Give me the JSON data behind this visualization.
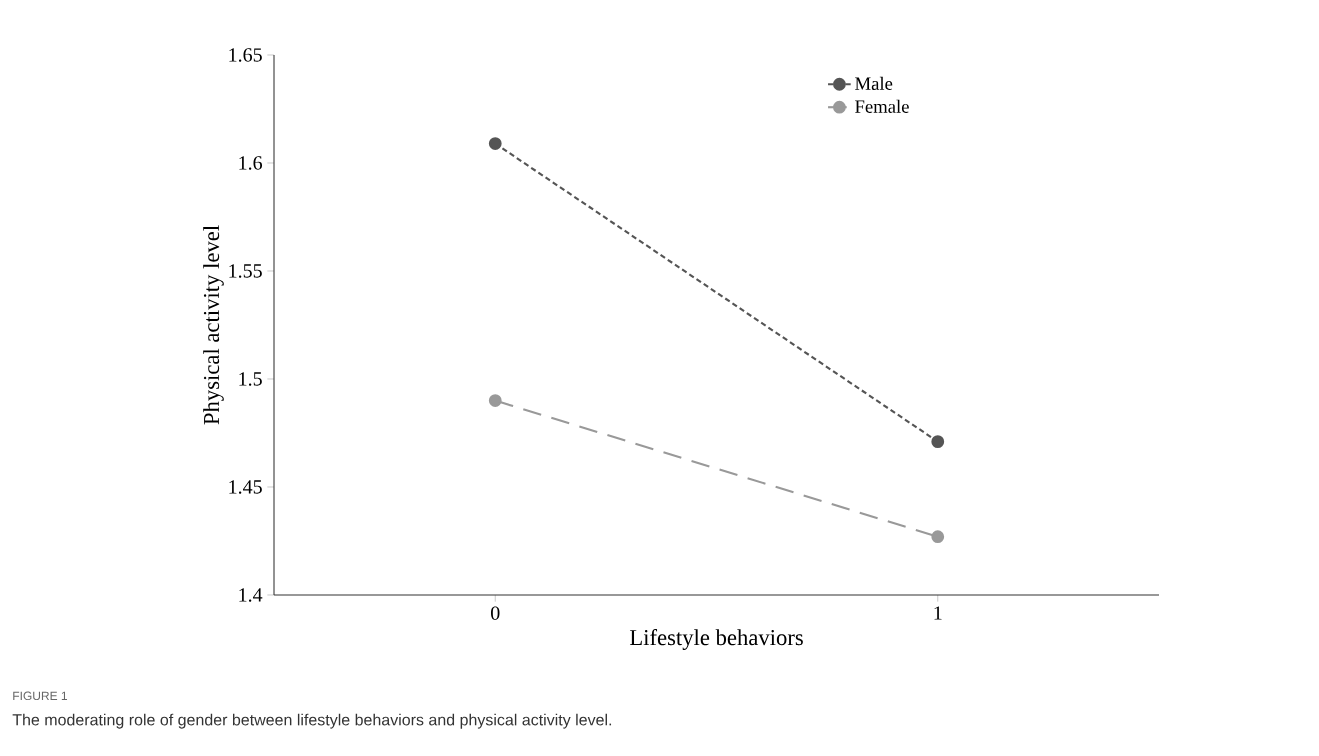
{
  "chart_data": {
    "type": "line",
    "xlabel": "Lifestyle behaviors",
    "ylabel": "Physical activity level",
    "x": [
      0,
      1
    ],
    "xlim": [
      -0.5,
      1.5
    ],
    "xticks": [
      0,
      1
    ],
    "ylim": [
      1.4,
      1.65
    ],
    "yticks": [
      1.4,
      1.45,
      1.5,
      1.55,
      1.6,
      1.65
    ],
    "series": [
      {
        "name": "Male",
        "color": "#555555",
        "values": [
          1.609,
          1.471
        ],
        "line_style": "dashed"
      },
      {
        "name": "Female",
        "color": "#999999",
        "values": [
          1.49,
          1.427
        ],
        "line_style": "dashed"
      }
    ],
    "marker": "circle",
    "legend": "top right",
    "grid": false,
    "annotations": [
      "FIGURE 1",
      "The moderating role of gender between lifestyle behaviors and physical activity level."
    ]
  }
}
